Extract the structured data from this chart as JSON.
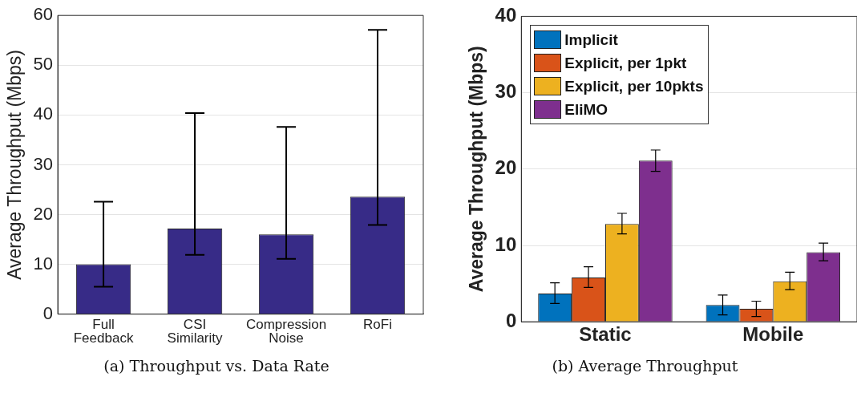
{
  "chart_data": [
    {
      "type": "bar",
      "ylabel": "Average Throughput (Mbps)",
      "categories": [
        "Full Feedback",
        "CSI Similarity",
        "Compression Noise",
        "RoFi"
      ],
      "values": [
        10,
        17.2,
        16,
        23.6
      ],
      "color": "#372b87",
      "errors": [
        [
          5.5,
          22.6
        ],
        [
          11.9,
          40.4
        ],
        [
          11.1,
          37.6
        ],
        [
          17.9,
          57.1
        ]
      ],
      "ylim": [
        0,
        60
      ],
      "yticks": [
        0,
        10,
        20,
        30,
        40,
        50,
        60
      ],
      "grid": "y",
      "legend": false,
      "annotations": [
        "(a) Throughput vs. Data Rate"
      ]
    },
    {
      "type": "bar",
      "ylabel": "Average Throughput (Mbps)",
      "categories": [
        "Static",
        "Mobile"
      ],
      "series": [
        {
          "name": "Implicit",
          "color": "#0072bd",
          "values": [
            3.7,
            2.2
          ],
          "errors": [
            [
              2.4,
              5.1
            ],
            [
              0.9,
              3.5
            ]
          ]
        },
        {
          "name": "Explicit, per 1pkt",
          "color": "#d95319",
          "values": [
            5.8,
            1.7
          ],
          "errors": [
            [
              4.5,
              7.2
            ],
            [
              0.7,
              2.7
            ]
          ]
        },
        {
          "name": "Explicit, per 10pkts",
          "color": "#edb120",
          "values": [
            12.8,
            5.3
          ],
          "errors": [
            [
              11.5,
              14.2
            ],
            [
              4.2,
              6.5
            ]
          ]
        },
        {
          "name": "EliMO",
          "color": "#7e2f8e",
          "values": [
            21.1,
            9.1
          ],
          "errors": [
            [
              19.7,
              22.5
            ],
            [
              8.0,
              10.3
            ]
          ]
        }
      ],
      "ylim": [
        0,
        40
      ],
      "yticks": [
        0,
        10,
        20,
        30,
        40
      ],
      "grid": "y",
      "legend": "top left",
      "annotations": [
        "(b) Average Throughput"
      ]
    }
  ]
}
